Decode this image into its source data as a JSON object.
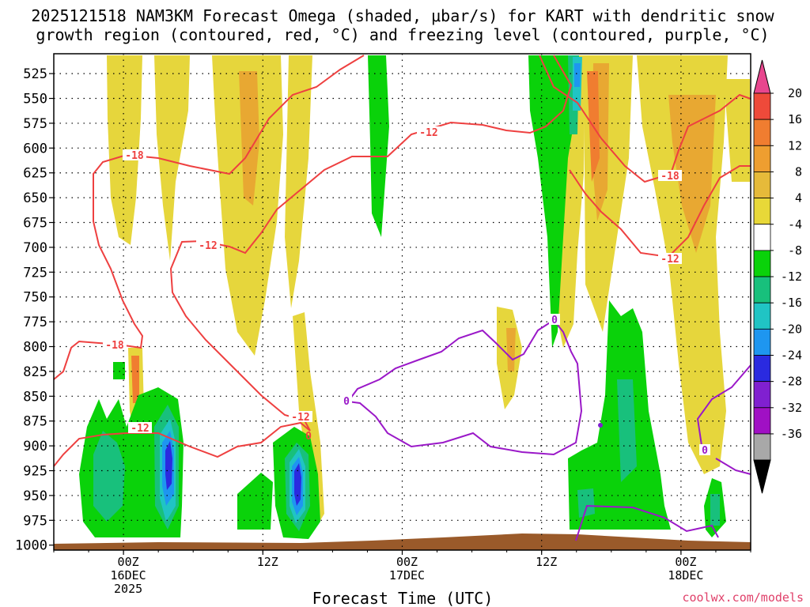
{
  "chart_data": {
    "type": "time-height contour",
    "title_line1": "2025121518 NAM3KM Forecast Omega (shaded, μbar/s) for KART with dendritic snow",
    "title_line2": "growth region (contoured, red, °C) and freezing level (contoured, purple, °C)",
    "xlabel": "Forecast Time (UTC)",
    "x_ticks": [
      {
        "hour": 6,
        "lines": [
          "00Z",
          "16DEC",
          "2025"
        ]
      },
      {
        "hour": 18,
        "lines": [
          "12Z"
        ]
      },
      {
        "hour": 30,
        "lines": [
          "00Z",
          "17DEC"
        ]
      },
      {
        "hour": 42,
        "lines": [
          "12Z"
        ]
      },
      {
        "hour": 54,
        "lines": [
          "00Z",
          "18DEC"
        ]
      }
    ],
    "x_range_hours": [
      0,
      60
    ],
    "y_levels_mb": [
      525,
      550,
      575,
      600,
      625,
      650,
      675,
      700,
      725,
      750,
      775,
      800,
      825,
      850,
      875,
      900,
      925,
      950,
      975,
      1000
    ],
    "y_range_mb": [
      505,
      1005
    ],
    "colorbar": {
      "tick_labels": [
        "20",
        "16",
        "12",
        "8",
        "4",
        "-4",
        "-8",
        "-12",
        "-16",
        "-20",
        "-24",
        "-28",
        "-32",
        "-36"
      ],
      "bins": [
        {
          "color": "#e8468e"
        },
        {
          "color": "#ee4a3a"
        },
        {
          "color": "#f07d30"
        },
        {
          "color": "#ee9e30"
        },
        {
          "color": "#e6ba3a"
        },
        {
          "color": "#e8d838"
        },
        {
          "color": "#ffffff"
        },
        {
          "color": "#0ad20a"
        },
        {
          "color": "#18c07c"
        },
        {
          "color": "#20c4c4"
        },
        {
          "color": "#1e96f0"
        },
        {
          "color": "#2a2ae0"
        },
        {
          "color": "#8020d0"
        },
        {
          "color": "#a010c4"
        },
        {
          "color": "#a8a8a8"
        },
        {
          "color": "#000000"
        }
      ]
    },
    "contour_labels": {
      "red": [
        "-18",
        "-12",
        "-12",
        "-18",
        "-18",
        "-12",
        "-12",
        "-12",
        "0"
      ],
      "purple": [
        "0",
        "0",
        "0"
      ]
    },
    "colors": {
      "dsg_contour": "#ee4040",
      "freezing_contour": "#9a18c8",
      "terrain": "#9a5a2a",
      "grid": "#000000"
    }
  },
  "credit": "coolwx.com/models"
}
